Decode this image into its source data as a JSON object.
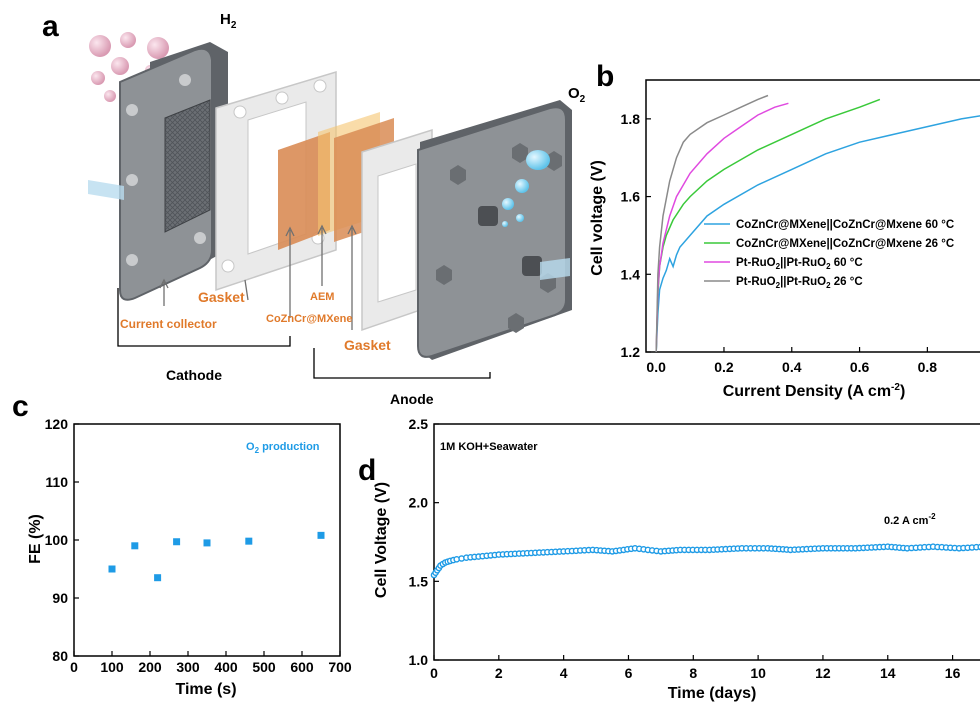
{
  "panel_labels": {
    "a": "a",
    "b": "b",
    "c": "c",
    "d": "d"
  },
  "schematic": {
    "h2_label": "H",
    "h2_sub": "2",
    "o2_label": "O",
    "o2_sub": "2",
    "gasket_left": "Gasket",
    "current_collector": "Current collector",
    "catalyst": "CoZnCr@MXene",
    "aem": "AEM",
    "gasket_right": "Gasket",
    "cathode": "Cathode",
    "anode": "Anode"
  },
  "chart_data": [
    {
      "type": "line",
      "panel": "b",
      "xlabel": "Current Density (A cm",
      "xlabel_sup": "-2",
      "xlabel_end": ")",
      "ylabel": "Cell voltage (V)",
      "xlim": [
        -0.03,
        0.97
      ],
      "ylim": [
        1.2,
        1.9
      ],
      "xticks": [
        0.0,
        0.2,
        0.4,
        0.6,
        0.8
      ],
      "xtick_labels": [
        "0.0",
        "0.2",
        "0.4",
        "0.6",
        "0.8"
      ],
      "yticks": [
        1.2,
        1.4,
        1.6,
        1.8
      ],
      "ytick_labels": [
        "1.2",
        "1.4",
        "1.6",
        "1.8"
      ],
      "legend_position": "center-right",
      "series": [
        {
          "name": "CoZnCr@MXene||CoZnCr@Mxene 60 °C",
          "color": "#2ea3e0",
          "x": [
            0.0,
            0.005,
            0.01,
            0.02,
            0.03,
            0.04,
            0.05,
            0.06,
            0.07,
            0.08,
            0.1,
            0.15,
            0.2,
            0.3,
            0.4,
            0.5,
            0.6,
            0.7,
            0.8,
            0.9,
            0.97
          ],
          "y": [
            1.2,
            1.3,
            1.36,
            1.39,
            1.41,
            1.44,
            1.42,
            1.45,
            1.47,
            1.48,
            1.5,
            1.55,
            1.58,
            1.63,
            1.67,
            1.71,
            1.74,
            1.76,
            1.78,
            1.8,
            1.81
          ]
        },
        {
          "name": "CoZnCr@MXene||CoZnCr@Mxene 26 °C",
          "color": "#3ac93a",
          "x": [
            0.0,
            0.005,
            0.01,
            0.02,
            0.03,
            0.05,
            0.08,
            0.1,
            0.15,
            0.2,
            0.3,
            0.4,
            0.5,
            0.6,
            0.66
          ],
          "y": [
            1.2,
            1.35,
            1.42,
            1.47,
            1.5,
            1.54,
            1.58,
            1.6,
            1.64,
            1.67,
            1.72,
            1.76,
            1.8,
            1.83,
            1.85
          ]
        },
        {
          "name": "Pt-RuO2||Pt-RuO2 60 °C",
          "color": "#e04ae0",
          "x": [
            0.0,
            0.005,
            0.01,
            0.02,
            0.04,
            0.06,
            0.1,
            0.15,
            0.2,
            0.25,
            0.3,
            0.35,
            0.39
          ],
          "y": [
            1.2,
            1.36,
            1.42,
            1.48,
            1.55,
            1.6,
            1.66,
            1.71,
            1.75,
            1.78,
            1.81,
            1.83,
            1.84
          ]
        },
        {
          "name": "Pt-RuO2||Pt-RuO2 26 °C",
          "color": "#8a8a8a",
          "x": [
            0.0,
            0.005,
            0.01,
            0.02,
            0.04,
            0.06,
            0.08,
            0.1,
            0.15,
            0.2,
            0.25,
            0.3,
            0.33
          ],
          "y": [
            1.2,
            1.4,
            1.47,
            1.55,
            1.64,
            1.7,
            1.74,
            1.76,
            1.79,
            1.81,
            1.83,
            1.85,
            1.86
          ]
        }
      ]
    },
    {
      "type": "scatter",
      "panel": "c",
      "xlabel": "Time (s)",
      "ylabel": "FE (%)",
      "xlim": [
        0,
        700
      ],
      "ylim": [
        80,
        120
      ],
      "xticks": [
        0,
        100,
        200,
        300,
        400,
        500,
        600,
        700
      ],
      "xtick_labels": [
        "0",
        "100",
        "200",
        "300",
        "400",
        "500",
        "600",
        "700"
      ],
      "yticks": [
        80,
        90,
        100,
        110,
        120
      ],
      "ytick_labels": [
        "80",
        "90",
        "100",
        "110",
        "120"
      ],
      "annotation_main": "O",
      "annotation_sub": "2",
      "annotation_rest": " production",
      "color": "#1e9be6",
      "x": [
        100,
        160,
        220,
        270,
        350,
        460,
        650
      ],
      "y": [
        95.0,
        99.0,
        93.5,
        99.7,
        99.5,
        99.8,
        100.8
      ]
    },
    {
      "type": "scatter",
      "panel": "d",
      "xlabel": "Time (days)",
      "ylabel": "Cell Voltage (V)",
      "xlim": [
        0,
        17
      ],
      "ylim": [
        1.0,
        2.5
      ],
      "xticks": [
        0,
        2,
        4,
        6,
        8,
        10,
        12,
        14,
        16
      ],
      "xtick_labels": [
        "0",
        "2",
        "4",
        "6",
        "8",
        "10",
        "12",
        "14",
        "16"
      ],
      "yticks": [
        1.0,
        1.5,
        2.0,
        2.5
      ],
      "ytick_labels": [
        "1.0",
        "1.5",
        "2.0",
        "2.5"
      ],
      "annotation_electrolyte": "1M KOH+Seawater",
      "annotation_current": "0.2 A cm",
      "annotation_current_sup": "-2",
      "color": "#1e9be6",
      "x": [
        0,
        0.1,
        0.2,
        0.35,
        0.5,
        0.7,
        1.0,
        1.5,
        2.0,
        3.0,
        4.0,
        4.9,
        5.5,
        6.2,
        7.0,
        7.6,
        8.5,
        9.5,
        10.3,
        11.0,
        12.0,
        13.0,
        14.0,
        14.6,
        15.4,
        16.2,
        17.0
      ],
      "y": [
        1.54,
        1.57,
        1.6,
        1.62,
        1.63,
        1.64,
        1.65,
        1.66,
        1.67,
        1.68,
        1.69,
        1.7,
        1.69,
        1.71,
        1.69,
        1.7,
        1.7,
        1.71,
        1.71,
        1.7,
        1.71,
        1.71,
        1.72,
        1.71,
        1.72,
        1.71,
        1.72
      ]
    }
  ]
}
